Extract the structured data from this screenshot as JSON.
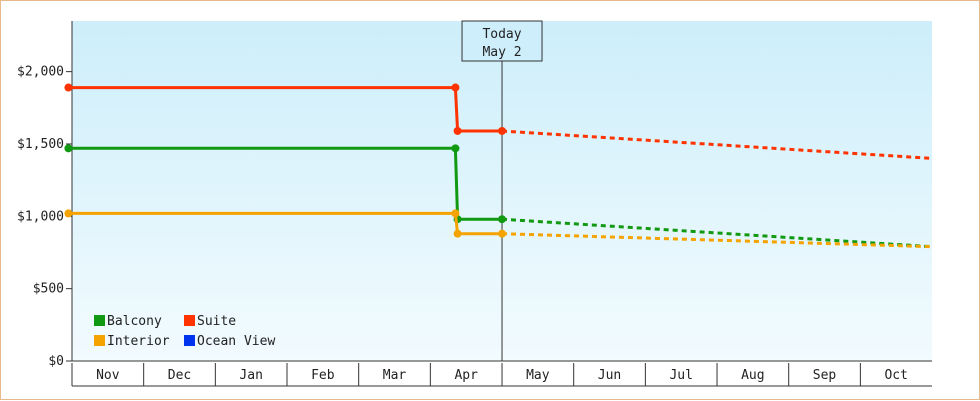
{
  "chart_data": {
    "type": "line",
    "title": "",
    "xlabel": "",
    "ylabel": "",
    "ylim": [
      0,
      2350
    ],
    "yticks": [
      0,
      500,
      1000,
      1500,
      2000
    ],
    "ytick_labels": [
      "$0",
      "$500",
      "$1,000",
      "$1,500",
      "$2,000"
    ],
    "months": [
      "Nov",
      "Dec",
      "Jan",
      "Feb",
      "Mar",
      "Apr",
      "May",
      "Jun",
      "Jul",
      "Aug",
      "Sep",
      "Oct"
    ],
    "today_marker": {
      "line1": "Today",
      "line2": "May 2",
      "x": 6.0
    },
    "colors": {
      "background_top": "#cdeefa",
      "background_bottom": "#f2fbfe",
      "axis": "#333333",
      "Balcony": "#119911",
      "Suite": "#ff3300",
      "Interior": "#f5a300",
      "Ocean View": "#0033ee"
    },
    "legend": {
      "placement": "bottom-left",
      "entries": [
        "Balcony",
        "Suite",
        "Interior",
        "Ocean View"
      ]
    },
    "series": [
      {
        "name": "Suite",
        "historical": [
          [
            -0.05,
            1890
          ],
          [
            5.35,
            1890
          ],
          [
            5.38,
            1590
          ],
          [
            6.0,
            1590
          ]
        ],
        "markers": [
          [
            -0.05,
            1890
          ],
          [
            5.35,
            1890
          ],
          [
            5.38,
            1590
          ],
          [
            6.0,
            1590
          ]
        ],
        "forecast": [
          [
            6.0,
            1590
          ],
          [
            12.0,
            1400
          ]
        ]
      },
      {
        "name": "Balcony",
        "historical": [
          [
            -0.05,
            1470
          ],
          [
            5.35,
            1470
          ],
          [
            5.38,
            980
          ],
          [
            6.0,
            980
          ]
        ],
        "markers": [
          [
            -0.05,
            1470
          ],
          [
            5.35,
            1470
          ],
          [
            5.38,
            980
          ],
          [
            6.0,
            980
          ]
        ],
        "forecast": [
          [
            6.0,
            980
          ],
          [
            12.0,
            790
          ]
        ]
      },
      {
        "name": "Interior",
        "historical": [
          [
            -0.05,
            1020
          ],
          [
            5.35,
            1020
          ],
          [
            5.38,
            880
          ],
          [
            6.0,
            880
          ]
        ],
        "markers": [
          [
            -0.05,
            1020
          ],
          [
            5.35,
            1020
          ],
          [
            5.38,
            880
          ],
          [
            6.0,
            880
          ]
        ],
        "forecast": [
          [
            6.0,
            880
          ],
          [
            12.0,
            790
          ]
        ]
      },
      {
        "name": "Ocean View",
        "historical": [],
        "markers": [],
        "forecast": []
      }
    ]
  }
}
